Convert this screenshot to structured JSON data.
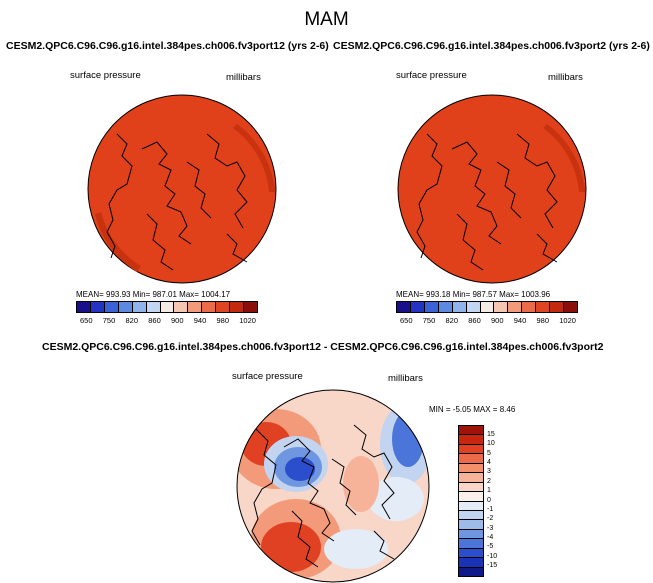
{
  "title": "MAM",
  "panels": [
    {
      "title": "CESM2.QPC6.C96.C96.g16.intel.384pes.ch006.fv3port12 (yrs 2-6)",
      "left_label": "surface pressure",
      "right_label": "millibars",
      "stats": "MEAN= 993.93  Min= 987.01  Max= 1004.17",
      "fill_color": "#e0401a"
    },
    {
      "title": "CESM2.QPC6.C96.C96.g16.intel.384pes.ch006.fv3port2 (yrs 2-6)",
      "left_label": "surface pressure",
      "right_label": "millibars",
      "stats": "MEAN= 993.18  Min= 987.57  Max= 1003.96",
      "fill_color": "#e0401a"
    }
  ],
  "colorbar_abs": {
    "colors": [
      "#1a0e8a",
      "#2433c4",
      "#3a63d8",
      "#5b8ae0",
      "#8fb3ea",
      "#c2d6f2",
      "#f4ebe3",
      "#f6c7b0",
      "#f29a79",
      "#ea6b47",
      "#df4523",
      "#c22a10",
      "#8a0f0a"
    ],
    "ticks": [
      "650",
      "750",
      "820",
      "860",
      "900",
      "940",
      "980",
      "1020"
    ]
  },
  "diff_panel": {
    "title": "CESM2.QPC6.C96.C96.g16.intel.384pes.ch006.fv3port12 - CESM2.QPC6.C96.C96.g16.intel.384pes.ch006.fv3port2",
    "left_label": "surface pressure",
    "right_label": "millibars",
    "stats": "MIN =  -5.05 MAX =   8.46"
  },
  "colorbar_diff": {
    "colors": [
      "#9e1408",
      "#c8260e",
      "#df4122",
      "#ec6a48",
      "#f38f6c",
      "#f6b39a",
      "#f8d6c8",
      "#fbf0ea",
      "#e4ecf7",
      "#c2d4f0",
      "#9cbbe9",
      "#6f96e0",
      "#4b75d8",
      "#2b4fcc",
      "#1a32b4",
      "#0e1a88"
    ],
    "ticks": [
      "15",
      "10",
      "5",
      "4",
      "3",
      "2",
      "1",
      "0",
      "-1",
      "-2",
      "-3",
      "-4",
      "-5",
      "-10",
      "-15"
    ]
  }
}
